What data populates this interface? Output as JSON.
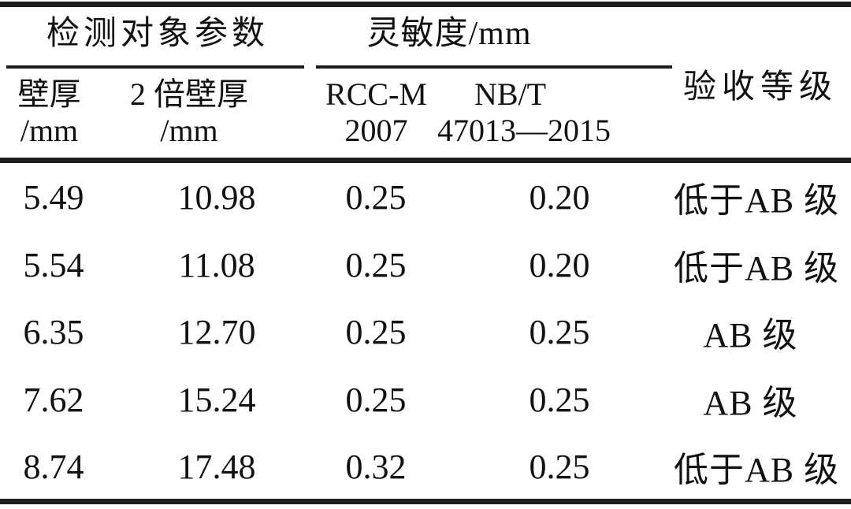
{
  "colors": {
    "background": "#ffffff",
    "text": "#111111",
    "rule": "#1d1d1d"
  },
  "table": {
    "header": {
      "params_group": "检测对象参数",
      "sensitivity_group": "灵敏度/mm",
      "acceptance": "验收等级",
      "wall": {
        "line1": "壁厚",
        "line2": "/mm"
      },
      "double_wall": {
        "line1": "2 倍壁厚",
        "line2": "/mm"
      },
      "rccm": {
        "line1": "RCC-M",
        "line2": "2007"
      },
      "nbt": {
        "line1": "NB/T",
        "line2": "47013—2015"
      }
    },
    "rows": [
      {
        "wall": "5.49",
        "double_wall": "10.98",
        "rccm": "0.25",
        "nbt": "0.20",
        "grade": "低于AB 级"
      },
      {
        "wall": "5.54",
        "double_wall": "11.08",
        "rccm": "0.25",
        "nbt": "0.20",
        "grade": "低于AB 级"
      },
      {
        "wall": "6.35",
        "double_wall": "12.70",
        "rccm": "0.25",
        "nbt": "0.25",
        "grade": "AB 级"
      },
      {
        "wall": "7.62",
        "double_wall": "15.24",
        "rccm": "0.25",
        "nbt": "0.25",
        "grade": "AB 级"
      },
      {
        "wall": "8.74",
        "double_wall": "17.48",
        "rccm": "0.32",
        "nbt": "0.25",
        "grade": "低于AB 级"
      }
    ]
  }
}
